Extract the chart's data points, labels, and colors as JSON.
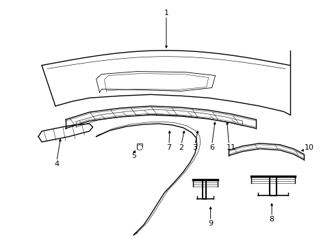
{
  "background_color": "#ffffff",
  "line_color": "#000000",
  "fig_width": 4.89,
  "fig_height": 3.6,
  "dpi": 100,
  "lw": 1.0,
  "tlw": 0.6
}
